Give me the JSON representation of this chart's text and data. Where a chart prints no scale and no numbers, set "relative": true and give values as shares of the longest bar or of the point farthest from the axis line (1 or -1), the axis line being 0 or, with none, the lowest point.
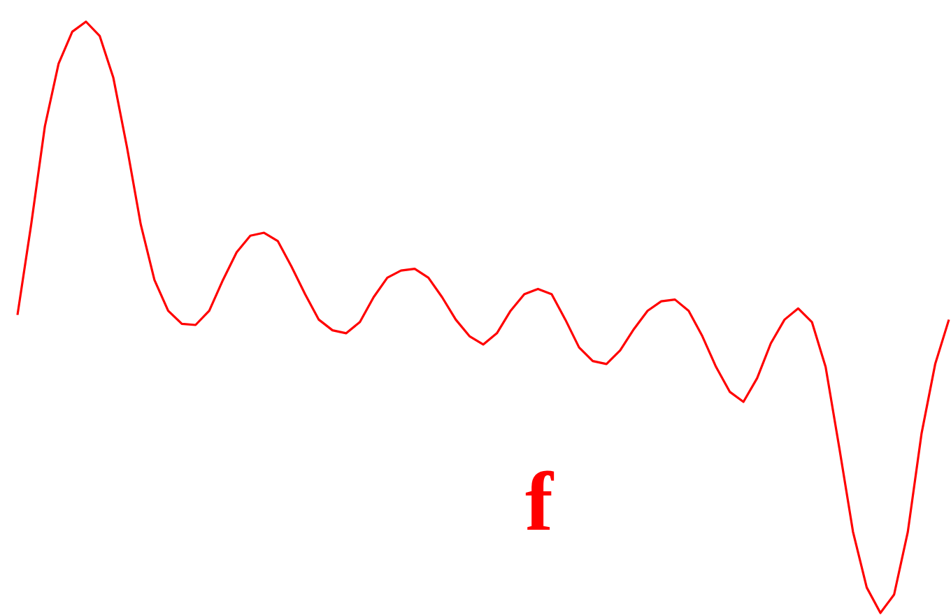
{
  "chart_data": {
    "type": "line",
    "relative": true,
    "grid": false,
    "tick_labels": false,
    "categories": [
      null,
      null,
      null,
      null,
      null,
      null,
      null,
      null,
      null,
      null,
      null,
      null,
      null,
      null,
      null,
      null,
      null,
      null,
      null,
      null,
      null,
      null,
      null,
      null,
      null,
      null,
      null,
      null,
      null,
      null,
      null,
      null,
      null,
      null,
      null,
      null,
      null,
      null,
      null,
      null,
      null,
      null,
      null,
      null,
      null,
      null,
      null,
      null,
      null,
      null,
      null,
      null,
      null,
      null,
      null,
      null,
      null,
      null,
      null,
      null,
      null,
      null,
      null,
      null,
      null,
      null,
      null,
      null,
      null
    ],
    "series": [
      {
        "name": "f",
        "color": "#ff0000",
        "values": [
          0.504,
          0.657,
          0.823,
          0.929,
          0.983,
          1,
          0.976,
          0.905,
          0.787,
          0.657,
          0.563,
          0.511,
          0.489,
          0.487,
          0.511,
          0.563,
          0.61,
          0.638,
          0.643,
          0.629,
          0.586,
          0.539,
          0.496,
          0.478,
          0.473,
          0.492,
          0.534,
          0.567,
          0.579,
          0.582,
          0.567,
          0.534,
          0.496,
          0.468,
          0.454,
          0.473,
          0.511,
          0.539,
          0.548,
          0.539,
          0.496,
          0.449,
          0.426,
          0.421,
          0.444,
          0.48,
          0.511,
          0.527,
          0.53,
          0.511,
          0.468,
          0.416,
          0.374,
          0.357,
          0.397,
          0.456,
          0.496,
          0.515,
          0.492,
          0.416,
          0.279,
          0.137,
          0.043,
          0,
          0.031,
          0.137,
          0.303,
          0.421,
          0.496
        ]
      }
    ]
  }
}
